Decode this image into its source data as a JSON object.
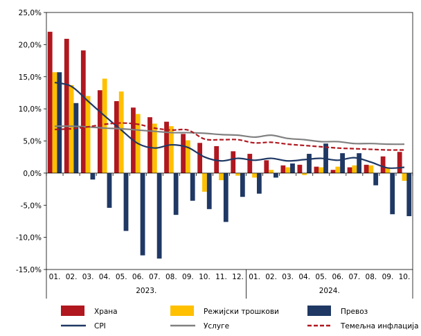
{
  "chart_data": {
    "type": "bar",
    "categories": [
      "01.",
      "02.",
      "03.",
      "04.",
      "05.",
      "06.",
      "07.",
      "08.",
      "09.",
      "10.",
      "11.",
      "12.",
      "01.",
      "02.",
      "03.",
      "04.",
      "05.",
      "06.",
      "07.",
      "08.",
      "09.",
      "10."
    ],
    "year_groups": [
      {
        "label": "2023.",
        "count": 12
      },
      {
        "label": "2024.",
        "count": 10
      }
    ],
    "y_ticks": [
      "25,0%",
      "20,0%",
      "15,0%",
      "10,0%",
      "5,0%",
      "0,0%",
      "-5,0%",
      "-10,0%",
      "-15,0%"
    ],
    "ylim": [
      -15,
      25
    ],
    "y_tick_step": 5,
    "bar_series": [
      {
        "name": "Храна",
        "color": "#B0171F",
        "values": [
          22.0,
          20.9,
          19.1,
          12.9,
          11.2,
          10.2,
          8.7,
          8.0,
          6.1,
          4.7,
          4.2,
          3.4,
          3.0,
          2.0,
          1.2,
          1.3,
          1.0,
          0.5,
          0.9,
          1.3,
          2.6,
          3.3
        ]
      },
      {
        "name": "Режијски трошкови",
        "color": "#FFC000",
        "values": [
          15.7,
          13.7,
          12.0,
          14.7,
          12.7,
          9.2,
          7.7,
          7.3,
          5.1,
          -2.9,
          -1.1,
          -0.4,
          -0.7,
          0.5,
          0.9,
          -0.3,
          0.9,
          1.0,
          1.2,
          1.2,
          0.9,
          -1.2
        ]
      },
      {
        "name": "Превоз",
        "color": "#1F3864",
        "values": [
          15.7,
          10.9,
          -1.0,
          -5.4,
          -9.0,
          -12.8,
          -13.3,
          -6.5,
          -4.3,
          -5.6,
          -7.6,
          -3.7,
          -3.2,
          -0.7,
          1.5,
          3.0,
          4.6,
          3.1,
          3.1,
          -1.9,
          -6.4,
          -6.7
        ]
      }
    ],
    "line_series": [
      {
        "name": "CPI",
        "color": "#1F3864",
        "dash": "none",
        "values": [
          14.1,
          13.5,
          11.2,
          8.9,
          6.7,
          4.6,
          3.9,
          4.4,
          4.0,
          2.5,
          1.9,
          2.3,
          2.0,
          2.3,
          1.9,
          2.1,
          2.3,
          2.0,
          2.4,
          1.7,
          0.8,
          0.9
        ]
      },
      {
        "name": "Услуге",
        "color": "#808080",
        "dash": "none",
        "values": [
          7.3,
          7.3,
          7.2,
          7.0,
          6.9,
          6.7,
          6.5,
          6.3,
          6.3,
          6.2,
          6.0,
          5.9,
          5.6,
          5.9,
          5.4,
          5.2,
          4.9,
          4.9,
          4.6,
          4.6,
          4.5,
          4.5
        ]
      },
      {
        "name": "Темељна инфлација",
        "color": "#B0171F",
        "dash": "6,3",
        "values": [
          6.8,
          6.9,
          7.2,
          7.6,
          7.8,
          7.6,
          7.0,
          6.7,
          6.7,
          5.3,
          5.2,
          5.2,
          4.7,
          4.8,
          4.5,
          4.3,
          4.1,
          3.9,
          3.8,
          3.7,
          3.6,
          3.6
        ]
      }
    ],
    "grid": false,
    "legend_position": "bottom"
  }
}
